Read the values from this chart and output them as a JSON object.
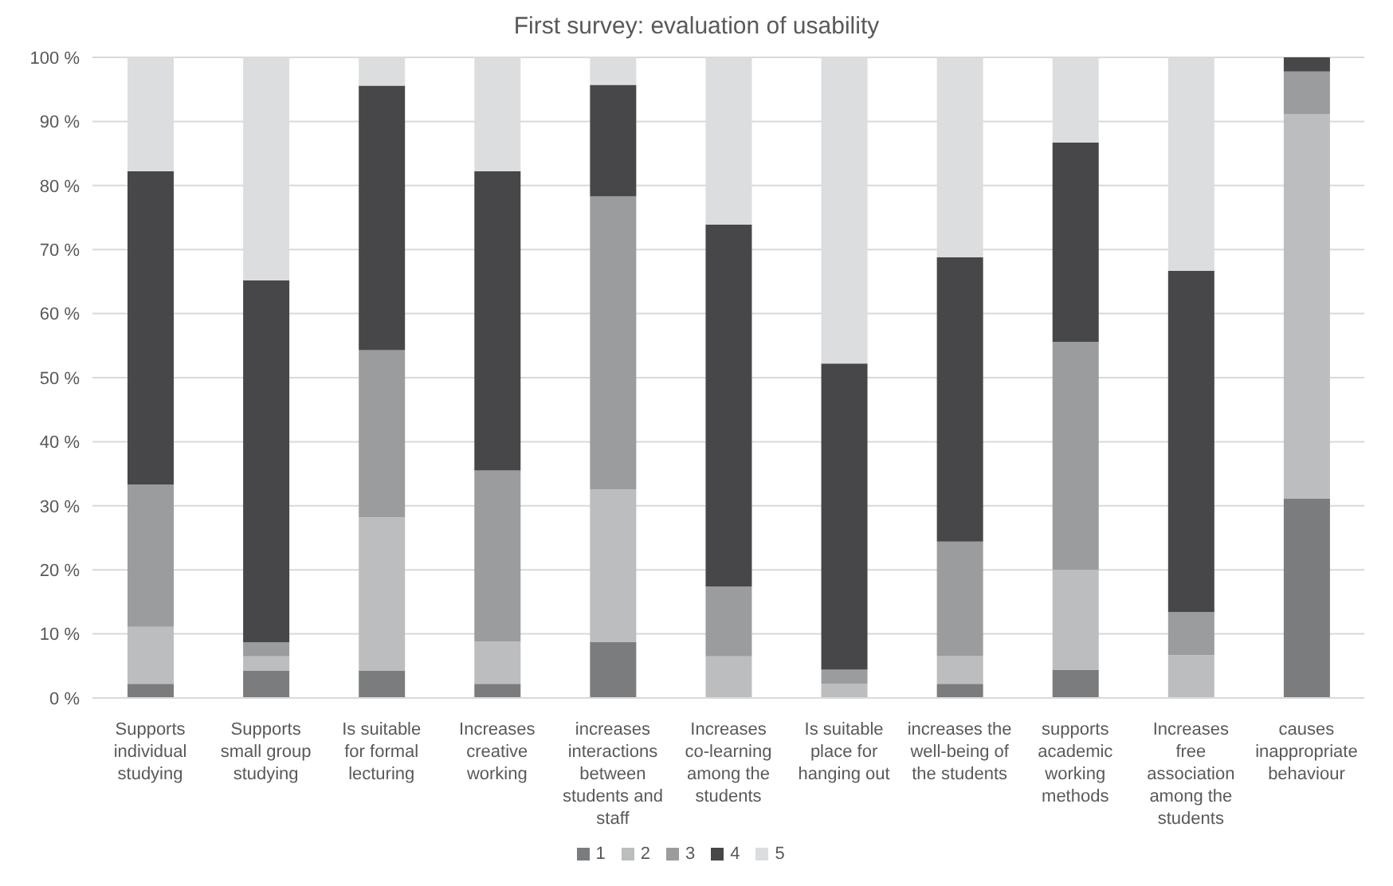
{
  "chart_data": {
    "type": "bar",
    "title": "First survey: evaluation of usability",
    "stacked": true,
    "categories": [
      "Supports individual studying",
      "Supports small group studying",
      "Is suitable for formal lecturing",
      "Increases creative working",
      "increases interactions between students and staff",
      "Increases co-learning among the students",
      "Is suitable place for hanging out",
      "increases the well-being of the students",
      "supports academic working methods",
      "Increases free association among the students",
      "causes inappropriate behaviour"
    ],
    "series": [
      {
        "name": "1",
        "color": "#7b7c7e",
        "values": [
          2.2,
          4.3,
          4.3,
          2.2,
          8.7,
          0,
          0,
          2.2,
          4.4,
          0,
          31.1
        ]
      },
      {
        "name": "2",
        "color": "#bcbdbf",
        "values": [
          8.9,
          2.2,
          23.9,
          6.6,
          23.9,
          6.5,
          2.2,
          4.4,
          15.6,
          6.7,
          60.0
        ]
      },
      {
        "name": "3",
        "color": "#9a9c9e",
        "values": [
          22.2,
          2.2,
          26.1,
          26.7,
          45.7,
          10.9,
          2.2,
          17.8,
          35.6,
          6.7,
          6.7
        ]
      },
      {
        "name": "4",
        "color": "#474749",
        "values": [
          48.9,
          56.5,
          41.3,
          46.7,
          17.4,
          56.5,
          47.8,
          44.4,
          31.1,
          53.3,
          2.2
        ]
      },
      {
        "name": "5",
        "color": "#dcdddf",
        "values": [
          17.8,
          34.8,
          4.4,
          17.8,
          4.3,
          26.1,
          47.8,
          31.1,
          13.3,
          33.3,
          0
        ]
      }
    ],
    "ylim": [
      0,
      100
    ],
    "yticks": [
      {
        "value": 0,
        "label": "0 %"
      },
      {
        "value": 10,
        "label": "10 %"
      },
      {
        "value": 20,
        "label": "20 %"
      },
      {
        "value": 30,
        "label": "30 %"
      },
      {
        "value": 40,
        "label": "40 %"
      },
      {
        "value": 50,
        "label": "50 %"
      },
      {
        "value": 60,
        "label": "60 %"
      },
      {
        "value": 70,
        "label": "70 %"
      },
      {
        "value": 80,
        "label": "80 %"
      },
      {
        "value": 90,
        "label": "90 %"
      },
      {
        "value": 100,
        "label": "100 %"
      }
    ],
    "grid": "y",
    "legend": "bottom"
  }
}
